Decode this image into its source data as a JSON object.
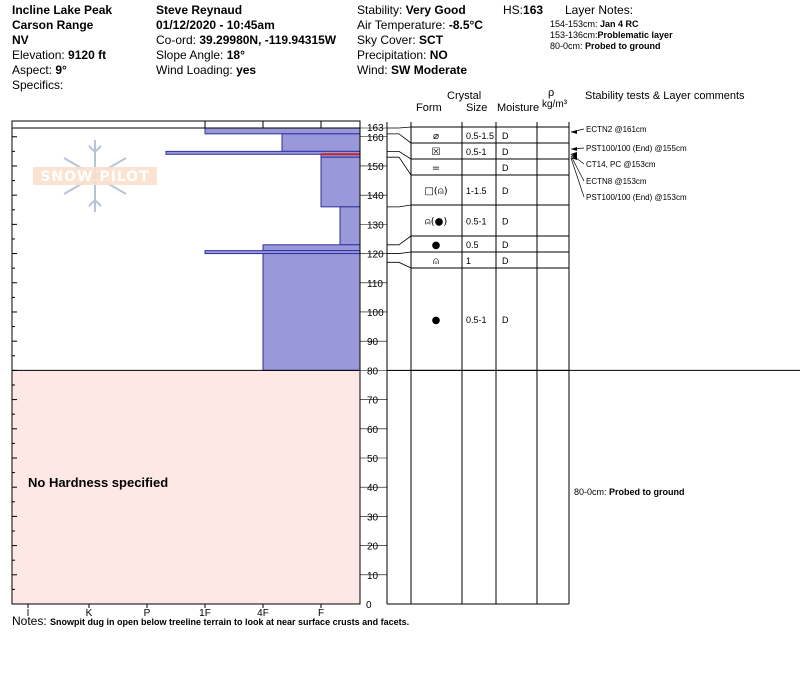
{
  "header": {
    "location": "Incline Lake Peak",
    "range": "Carson Range",
    "state": "NV",
    "elevation_label": "Elevation:",
    "elevation_value": "9120 ft",
    "aspect_label": "Aspect:",
    "aspect_value": "9°",
    "specifics_label": "Specifics:",
    "observer": "Steve Reynaud",
    "datetime": "01/12/2020 - 10:45am",
    "coord_label": "Co-ord:",
    "coord_value": "39.29980N, -119.94315W",
    "slope_label": "Slope Angle:",
    "slope_value": "18°",
    "wind_loading_label": "Wind Loading:",
    "wind_loading_value": "yes",
    "stability_label": "Stability:",
    "stability_value": "Very Good",
    "air_temp_label": "Air Temperature:",
    "air_temp_value": "-8.5°C",
    "sky_label": "Sky Cover:",
    "sky_value": "SCT",
    "precip_label": "Precipitation:",
    "precip_value": "NO",
    "wind_label": "Wind:",
    "wind_value": "SW Moderate",
    "hs_label": "HS:",
    "hs_value": "163",
    "layer_notes_title": "Layer Notes:",
    "layer_notes": [
      {
        "range": "154-153cm:",
        "text": "Jan 4 RC"
      },
      {
        "range": "153-136cm:",
        "text": "Problematic layer"
      },
      {
        "range": "80-0cm:",
        "text": "Probed to ground"
      }
    ]
  },
  "columns": {
    "crystal": "Crystal",
    "form": "Form",
    "size": "Size",
    "moisture": "Moisture",
    "rho": "ρ",
    "density_unit": "kg/m³",
    "comments": "Stability tests & Layer comments"
  },
  "watermark": "SNOW PILOT",
  "no_hardness_text": "No Hardness specified",
  "notes_label": "Notes:",
  "notes_text": "Snowpit dug in open below treeline terrain to look at near surface crusts and facets.",
  "bottom_comment": {
    "range": "80-0cm:",
    "text": "Probed to ground"
  },
  "colors": {
    "profile_fill": "#9999d9",
    "profile_stroke": "#2f2fa0",
    "no_hardness_fill": "#fde8e6",
    "highlight_line": "#cc2222"
  },
  "chart_data": {
    "type": "table",
    "y_axis": {
      "min": 0,
      "max": 163,
      "ticks": [
        10,
        20,
        30,
        40,
        50,
        60,
        70,
        80,
        90,
        100,
        110,
        120,
        130,
        140,
        150,
        160,
        163
      ],
      "bottom_label": "0"
    },
    "hardness_scale": [
      "I",
      "K",
      "P",
      "1F",
      "4F",
      "F"
    ],
    "hardness_profile": [
      {
        "top": 163,
        "bottom": 161,
        "hardness": "1F"
      },
      {
        "top": 161,
        "bottom": 155,
        "hardness": "4F+"
      },
      {
        "top": 155,
        "bottom": 154,
        "hardness": "P+"
      },
      {
        "top": 154,
        "bottom": 153,
        "hardness": "F-"
      },
      {
        "top": 153,
        "bottom": 136,
        "hardness": "F-"
      },
      {
        "top": 136,
        "bottom": 123,
        "hardness": "F+"
      },
      {
        "top": 123,
        "bottom": 121,
        "hardness": "4F"
      },
      {
        "top": 121,
        "bottom": 120,
        "hardness": "1F"
      },
      {
        "top": 120,
        "bottom": 80,
        "hardness": "4F"
      }
    ],
    "no_hardness_range": {
      "top": 80,
      "bottom": 0
    },
    "layers": [
      {
        "top": 163,
        "bottom": 161,
        "form": "⌀",
        "size": "0.5-1.5",
        "moisture": "D"
      },
      {
        "top": 161,
        "bottom": 155,
        "form": "☒",
        "size": "0.5-1",
        "moisture": "D"
      },
      {
        "top": 155,
        "bottom": 153,
        "form": "=",
        "size": "",
        "moisture": "D"
      },
      {
        "top": 153,
        "bottom": 136,
        "form": "□(⍝)",
        "size": "1-1.5",
        "moisture": "D"
      },
      {
        "top": 136,
        "bottom": 123,
        "form": "⍝(●)",
        "size": "0.5-1",
        "moisture": "D"
      },
      {
        "top": 123,
        "bottom": 120,
        "form": "●",
        "size": "0.5",
        "moisture": "D"
      },
      {
        "top": 120,
        "bottom": 117,
        "form": "⍝",
        "size": "1",
        "moisture": "D"
      },
      {
        "top": 117,
        "bottom": 80,
        "form": "●",
        "size": "0.5-1",
        "moisture": "D"
      }
    ],
    "stability_tests": [
      {
        "text": "ECTN2 @161cm",
        "at": 161
      },
      {
        "text": "PST100/100 (End) @155cm",
        "at": 155
      },
      {
        "text": "CT14, PC @153cm",
        "at": 153
      },
      {
        "text": "ECTN8 @153cm",
        "at": 153
      },
      {
        "text": "PST100/100 (End) @153cm",
        "at": 153
      }
    ]
  }
}
